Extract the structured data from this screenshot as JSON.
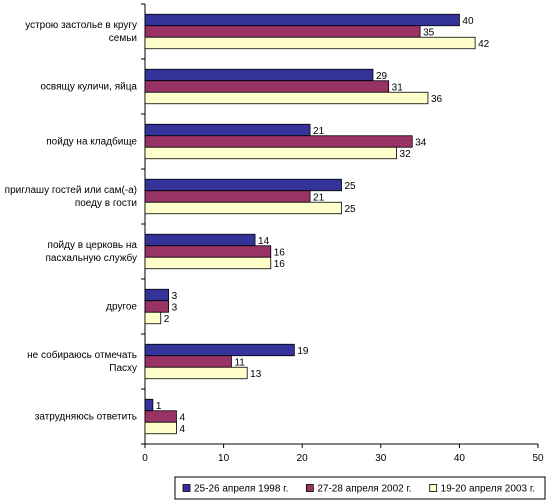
{
  "chart_data": {
    "type": "bar",
    "orientation": "horizontal",
    "categories": [
      [
        "устрою застолье в кругу",
        "семьи"
      ],
      [
        "освящу куличи, яйца"
      ],
      [
        "пойду на кладбище"
      ],
      [
        "приглашу гостей или сам(-а)",
        "поеду в гости"
      ],
      [
        "пойду в церковь на",
        "пасхальную службу"
      ],
      [
        "другое"
      ],
      [
        "не собираюсь отмечать",
        "Пасху"
      ],
      [
        "затрудняюсь ответить"
      ]
    ],
    "series": [
      {
        "name": "25-26 апреля 1998 г.",
        "color": "#333399",
        "values": [
          40,
          29,
          21,
          25,
          14,
          3,
          19,
          1
        ]
      },
      {
        "name": "27-28 апреля 2002 г.",
        "color": "#993366",
        "values": [
          35,
          31,
          34,
          21,
          16,
          3,
          11,
          4
        ]
      },
      {
        "name": "19-20 апреля 2003 г.",
        "color": "#FFFFCC",
        "values": [
          42,
          36,
          32,
          25,
          16,
          2,
          13,
          4
        ]
      }
    ],
    "xlim": [
      0,
      50
    ],
    "xticks": [
      0,
      10,
      20,
      30,
      40,
      50
    ],
    "grid": false,
    "legend_position": "bottom",
    "value_labels": true
  }
}
